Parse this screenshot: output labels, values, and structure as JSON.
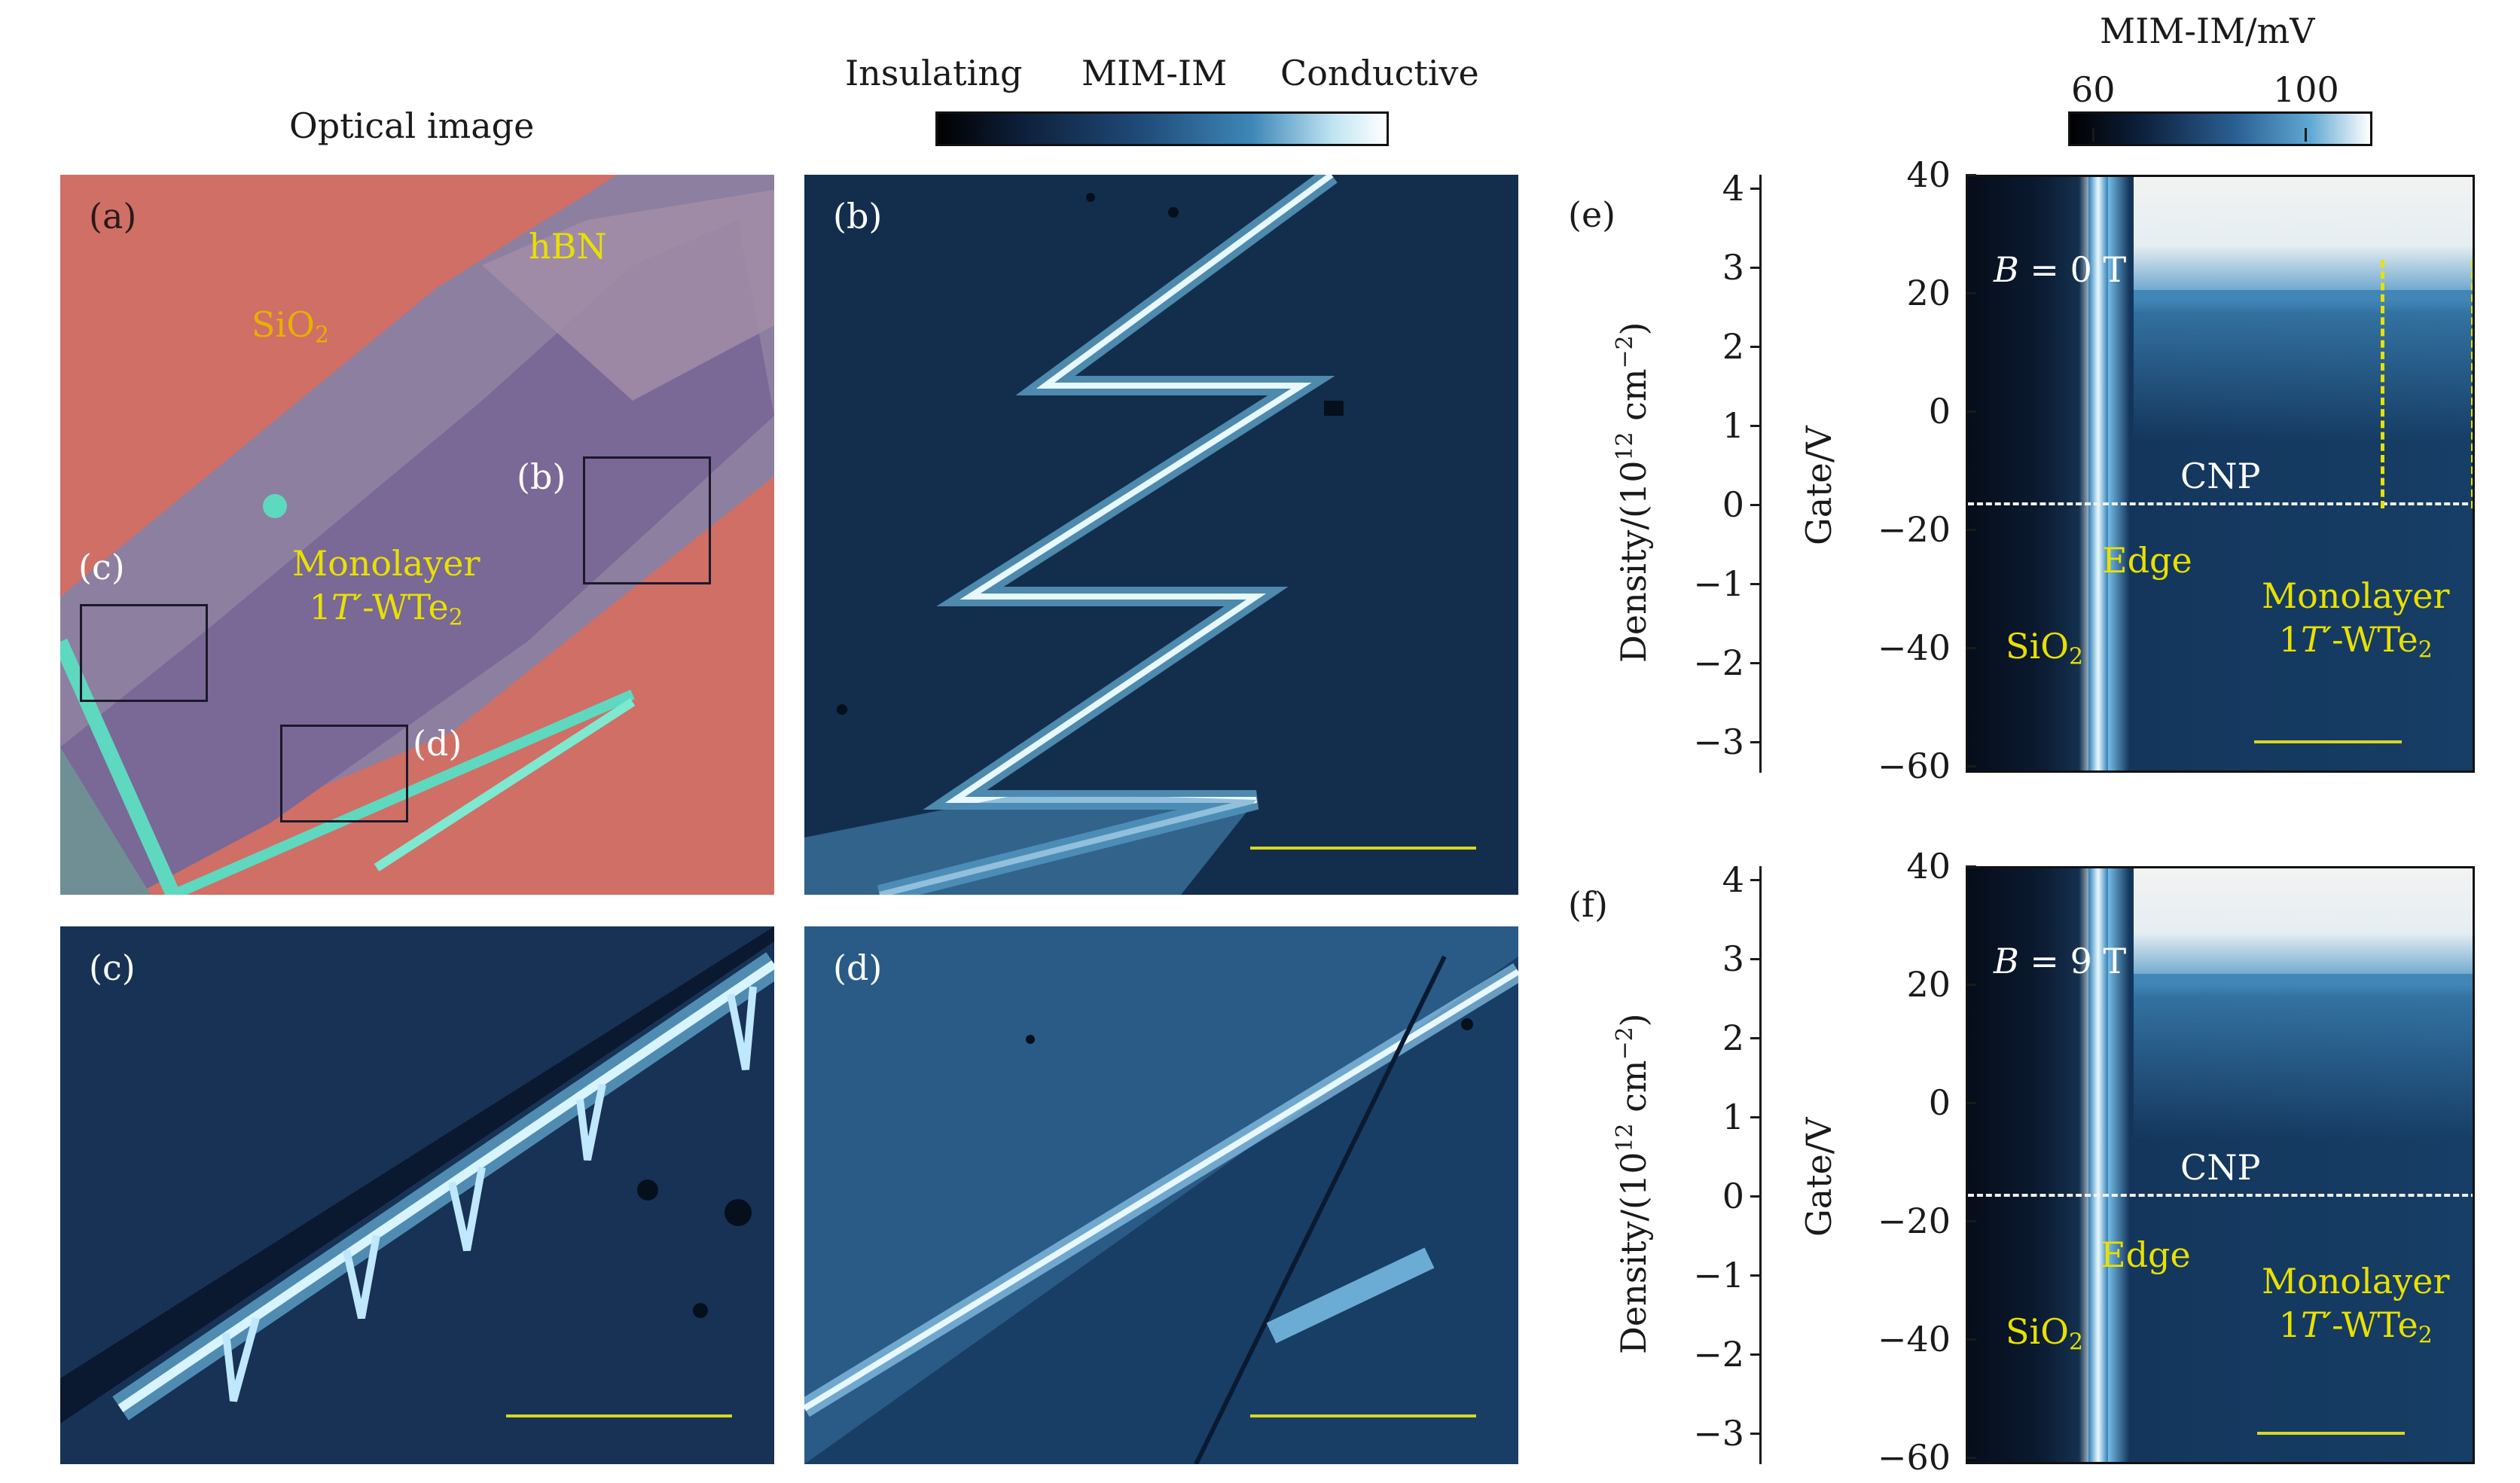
{
  "header": {
    "optical_title": "Optical image",
    "colorbar_left": "Insulating",
    "colorbar_mid": "MIM-IM",
    "colorbar_right": "Conductive",
    "right_colorbar_title": "MIM-IM/mV",
    "right_colorbar_min": "60",
    "right_colorbar_max": "100"
  },
  "panel_a": {
    "label": "(a)",
    "hbn": "hBN",
    "sio2": "SiO",
    "sio2_sub": "2",
    "mono_line1": "Monolayer",
    "mono_line2_pre": "1",
    "mono_line2_t": "T′",
    "mono_line2_post": "-WTe",
    "mono_line2_sub": "2",
    "box_b": "(b)",
    "box_c": "(c)",
    "box_d": "(d)"
  },
  "panel_b": {
    "label": "(b)"
  },
  "panel_c": {
    "label": "(c)"
  },
  "panel_d": {
    "label": "(d)"
  },
  "panel_e": {
    "label": "(e)",
    "field": "B",
    "field_value": " = 0 T",
    "cnp": "CNP",
    "edge": "Edge",
    "sio2": "SiO",
    "sio2_sub": "2",
    "mono_line1": "Monolayer",
    "mono_line2_pre": "1",
    "mono_line2_t": "T′",
    "mono_line2_post": "-WTe",
    "mono_line2_sub": "2",
    "density_label_pre": "Density/(10",
    "density_label_sup": "12",
    "density_label_post": " cm",
    "density_label_sup2": "−2",
    "density_label_end": ")",
    "gate_label": "Gate/V",
    "density_ticks": [
      "4",
      "3",
      "2",
      "1",
      "0",
      "−1",
      "−2",
      "−3"
    ],
    "gate_ticks": [
      "40",
      "20",
      "0",
      "−20",
      "−40",
      "−60"
    ]
  },
  "panel_f": {
    "label": "(f)",
    "field": "B",
    "field_value": " = 9 T",
    "cnp": "CNP",
    "edge": "Edge",
    "sio2": "SiO",
    "sio2_sub": "2",
    "mono_line1": "Monolayer",
    "mono_line2_pre": "1",
    "mono_line2_t": "T′",
    "mono_line2_post": "-WTe",
    "mono_line2_sub": "2",
    "density_label_pre": "Density/(10",
    "density_label_sup": "12",
    "density_label_post": " cm",
    "density_label_sup2": "−2",
    "density_label_end": ")",
    "gate_label": "Gate/V",
    "density_ticks": [
      "4",
      "3",
      "2",
      "1",
      "0",
      "−1",
      "−2",
      "−3"
    ],
    "gate_ticks": [
      "40",
      "20",
      "0",
      "−20",
      "−40",
      "−60"
    ]
  },
  "colors": {
    "substrate": "#cf6f66",
    "flake": "#7d6a9a",
    "mim_dark": "#0b1a2e",
    "mim_mid": "#2f6f9e",
    "mim_bright": "#d8f2ff",
    "label_yellow": "#e8e000"
  }
}
